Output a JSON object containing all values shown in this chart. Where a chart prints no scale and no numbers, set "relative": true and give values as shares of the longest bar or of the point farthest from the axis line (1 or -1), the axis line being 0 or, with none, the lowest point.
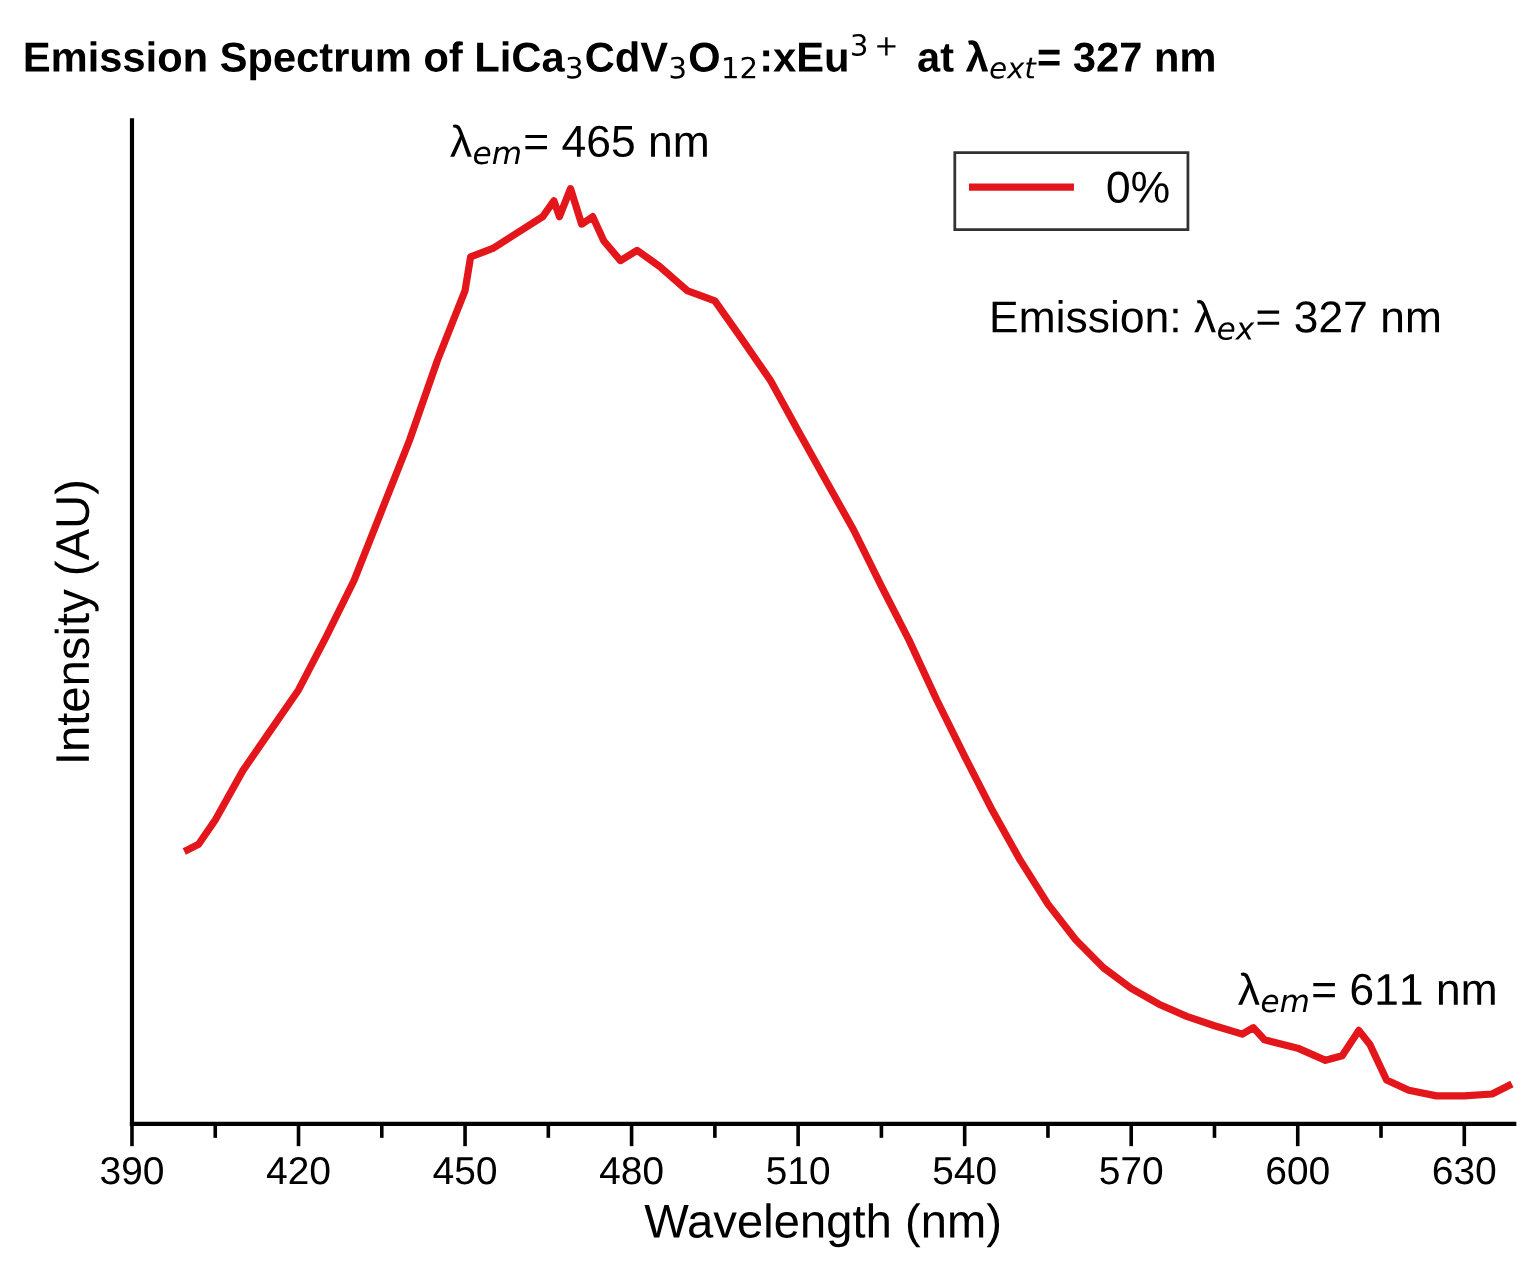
{
  "chart_data": {
    "type": "line",
    "title": "Emission Spectrum of LiCa$_{3}$CdV$_{3}$O$_{12}$:xEu$^{3+}$ at λ$_{ext}$= 327 nm",
    "xlabel": "Wavelength (nm)",
    "ylabel": "Intensity (AU)",
    "annotations": [
      "λ$_{em}$= 465 nm",
      "Emission: λ$_{ex}$= 327 nm",
      "λ$_{em}$= 611 nm"
    ],
    "relative": true,
    "xlim": [
      390,
      639
    ],
    "xticks": [
      390,
      420,
      450,
      480,
      510,
      540,
      570,
      600,
      630
    ],
    "legend": "top right",
    "grid": false,
    "series": [
      {
        "name": "0%",
        "color": "#e3171b",
        "x": [
          400,
          402,
          405,
          410,
          415,
          420,
          425,
          430,
          435,
          440,
          445,
          450,
          451,
          455,
          460,
          464,
          466,
          467,
          469,
          471,
          473,
          475,
          478,
          481,
          485,
          490,
          495,
          500,
          505,
          510,
          515,
          520,
          525,
          530,
          535,
          540,
          545,
          550,
          555,
          560,
          565,
          570,
          575,
          580,
          585,
          590,
          592,
          594,
          600,
          605,
          608,
          611,
          613,
          616,
          620,
          625,
          630,
          635,
          638
        ],
        "values": [
          0.293,
          0.299,
          0.325,
          0.378,
          0.421,
          0.464,
          0.521,
          0.581,
          0.656,
          0.731,
          0.816,
          0.891,
          0.927,
          0.936,
          0.955,
          0.97,
          0.987,
          0.97,
          1.0,
          0.962,
          0.97,
          0.944,
          0.923,
          0.934,
          0.917,
          0.891,
          0.88,
          0.838,
          0.795,
          0.741,
          0.688,
          0.635,
          0.575,
          0.517,
          0.453,
          0.393,
          0.335,
          0.282,
          0.235,
          0.197,
          0.167,
          0.145,
          0.128,
          0.115,
          0.105,
          0.096,
          0.103,
          0.09,
          0.081,
          0.068,
          0.073,
          0.1,
          0.085,
          0.047,
          0.036,
          0.03,
          0.03,
          0.032,
          0.041
        ]
      }
    ]
  }
}
